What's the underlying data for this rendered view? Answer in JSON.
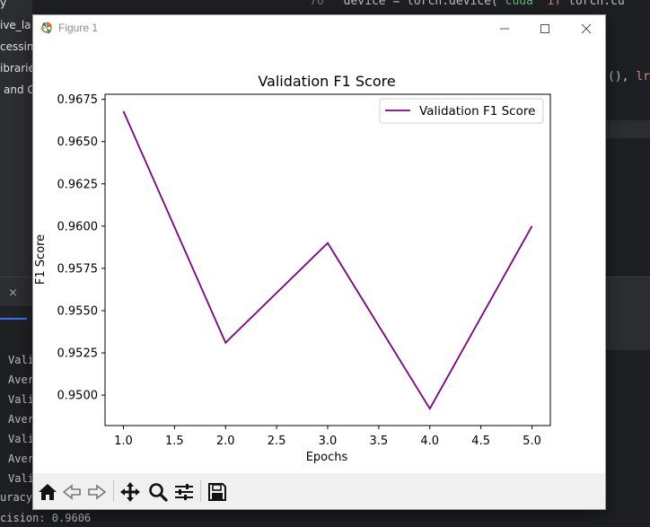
{
  "ide": {
    "sidebar_items": [
      "y",
      "ive_la",
      "cessin",
      "ibrarie",
      "and G"
    ],
    "editor_line": {
      "num": "76",
      "pre": "device = torch.device(",
      "s1": "'cuda'",
      "kw": " if ",
      "post": "torch.cu"
    },
    "editor_right_code": {
      "pre": "(), ",
      "lr": "lr="
    },
    "panel_close": "×",
    "terminal_lines": [
      "Vali",
      "Aver",
      "Vali",
      "Aver",
      "Vali",
      "Aver",
      "Vali",
      "uracy",
      "cision: 0.9606"
    ]
  },
  "window": {
    "title": "Figure 1",
    "minimize": "—",
    "maximize": "☐",
    "close": "✕"
  },
  "chart_data": {
    "type": "line",
    "title": "Validation F1 Score",
    "xlabel": "Epochs",
    "ylabel": "F1 Score",
    "x": [
      1,
      2,
      3,
      4,
      5
    ],
    "series": [
      {
        "name": "Validation F1 Score",
        "values": [
          0.9668,
          0.9531,
          0.959,
          0.9492,
          0.96
        ],
        "color": "#800080"
      }
    ],
    "xlim": [
      0.82,
      5.18
    ],
    "ylim": [
      0.9482,
      0.9678
    ],
    "xticks": [
      "1.0",
      "1.5",
      "2.0",
      "2.5",
      "3.0",
      "3.5",
      "4.0",
      "4.5",
      "5.0"
    ],
    "xtick_values": [
      1.0,
      1.5,
      2.0,
      2.5,
      3.0,
      3.5,
      4.0,
      4.5,
      5.0
    ],
    "yticks": [
      "0.9500",
      "0.9525",
      "0.9550",
      "0.9575",
      "0.9600",
      "0.9625",
      "0.9650",
      "0.9675"
    ],
    "ytick_values": [
      0.95,
      0.9525,
      0.955,
      0.9575,
      0.96,
      0.9625,
      0.965,
      0.9675
    ],
    "legend": "upper right",
    "grid": false
  },
  "toolbar": {
    "buttons": [
      "home-icon",
      "back-icon",
      "forward-icon",
      "pan-icon",
      "zoom-icon",
      "configure-subplots-icon",
      "save-icon"
    ]
  }
}
